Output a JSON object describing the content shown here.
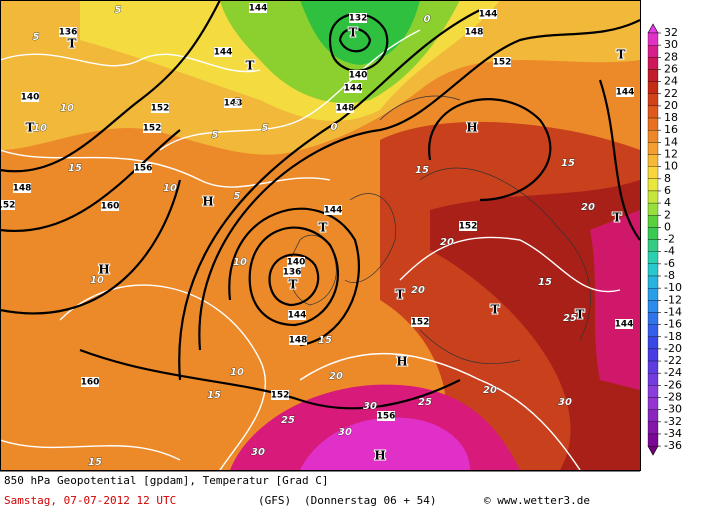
{
  "map": {
    "isohypse_labels": [
      136,
      132,
      140,
      144,
      144,
      144,
      144,
      144,
      148,
      148,
      148,
      152,
      152,
      152,
      156,
      160,
      152,
      148,
      140,
      140,
      136,
      144,
      144,
      148,
      152,
      152,
      156,
      160,
      152,
      144
    ],
    "isotherm_labels": [
      10,
      10,
      5,
      5,
      5,
      5,
      5,
      5,
      0,
      0,
      10,
      10,
      10,
      10,
      15,
      15,
      15,
      15,
      20,
      20,
      20,
      20,
      25,
      25,
      30,
      30,
      30,
      30,
      25,
      15,
      15,
      15,
      20
    ],
    "high_labels": [
      "H",
      "H",
      "H",
      "H",
      "H"
    ],
    "low_labels": [
      "T",
      "T",
      "T",
      "T",
      "T",
      "T",
      "T",
      "T",
      "T",
      "T",
      "T"
    ]
  },
  "legend": {
    "values": [
      32,
      30,
      28,
      26,
      24,
      22,
      20,
      18,
      16,
      14,
      12,
      10,
      8,
      6,
      4,
      2,
      0,
      -2,
      -4,
      -6,
      -8,
      -10,
      -12,
      -14,
      -16,
      -18,
      -20,
      -22,
      -24,
      -26,
      -28,
      -30,
      -32,
      -34,
      -36
    ]
  },
  "footer": {
    "title": "850 hPa Geopotential [gpdam], Temperatur [Grad C]",
    "date": "Samstag, 07-07-2012  12 UTC",
    "model": "(GFS)",
    "run": "(Donnerstag 06 + 54)",
    "credit": "© www.wetter3.de"
  }
}
